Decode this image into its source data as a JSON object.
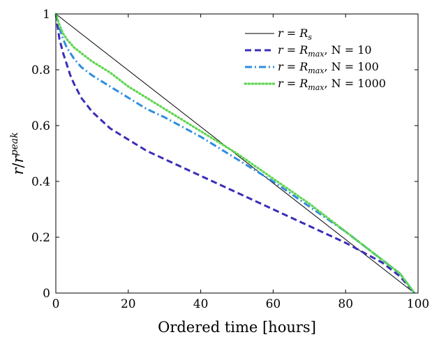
{
  "chart_data": {
    "type": "line",
    "xlabel": "Ordered time [hours]",
    "ylabel_main": "r",
    "ylabel_slash": "/",
    "ylabel_base": "r",
    "ylabel_sup": "peak",
    "xlim": [
      0,
      100
    ],
    "ylim": [
      0,
      1
    ],
    "xticks": [
      0,
      20,
      40,
      60,
      80,
      100
    ],
    "yticks": [
      0,
      0.2,
      0.4,
      0.6,
      0.8,
      1
    ],
    "xtick_labels": [
      "0",
      "20",
      "40",
      "60",
      "80",
      "100"
    ],
    "ytick_labels": [
      "0",
      "0.2",
      "0.4",
      "0.6",
      "0.8",
      "1"
    ],
    "grid": false,
    "legend_position": "top-right",
    "series": [
      {
        "legend": {
          "lhs": "r",
          "eq": " = ",
          "base": "R",
          "sub": "s",
          "tail": ""
        },
        "color": "#000000",
        "style": "solid",
        "x": [
          0,
          99
        ],
        "y": [
          1.0,
          0.0
        ]
      },
      {
        "legend": {
          "lhs": "r",
          "eq": " = ",
          "base": "R",
          "sub": "max",
          "tail": ", N = 10"
        },
        "color": "#3a2eb8",
        "style": "dashed",
        "x": [
          0,
          1,
          2,
          3,
          4,
          5,
          7,
          10,
          15,
          20,
          25,
          30,
          40,
          50,
          60,
          70,
          80,
          90,
          95,
          99
        ],
        "y": [
          1.0,
          0.91,
          0.86,
          0.82,
          0.78,
          0.75,
          0.7,
          0.65,
          0.59,
          0.55,
          0.51,
          0.48,
          0.42,
          0.36,
          0.3,
          0.24,
          0.18,
          0.11,
          0.06,
          0.0
        ]
      },
      {
        "legend": {
          "lhs": "r",
          "eq": " = ",
          "base": "R",
          "sub": "max",
          "tail": ", N = 100"
        },
        "color": "#2e8de0",
        "style": "dashdot",
        "x": [
          0,
          1,
          2,
          3,
          5,
          7,
          10,
          15,
          20,
          25,
          30,
          40,
          50,
          60,
          70,
          80,
          90,
          95,
          99
        ],
        "y": [
          1.0,
          0.95,
          0.91,
          0.88,
          0.84,
          0.81,
          0.78,
          0.74,
          0.7,
          0.66,
          0.63,
          0.56,
          0.48,
          0.4,
          0.31,
          0.22,
          0.12,
          0.07,
          0.0
        ]
      },
      {
        "legend": {
          "lhs": "r",
          "eq": " = ",
          "base": "R",
          "sub": "max",
          "tail": ", N = 1000"
        },
        "color": "#5fd650",
        "style": "dotted",
        "x": [
          0,
          1,
          2,
          3,
          5,
          7,
          10,
          15,
          20,
          25,
          30,
          40,
          50,
          60,
          70,
          80,
          90,
          95,
          99
        ],
        "y": [
          1.0,
          0.96,
          0.93,
          0.91,
          0.88,
          0.86,
          0.83,
          0.79,
          0.74,
          0.7,
          0.66,
          0.58,
          0.5,
          0.41,
          0.32,
          0.22,
          0.12,
          0.07,
          0.0
        ]
      }
    ]
  }
}
